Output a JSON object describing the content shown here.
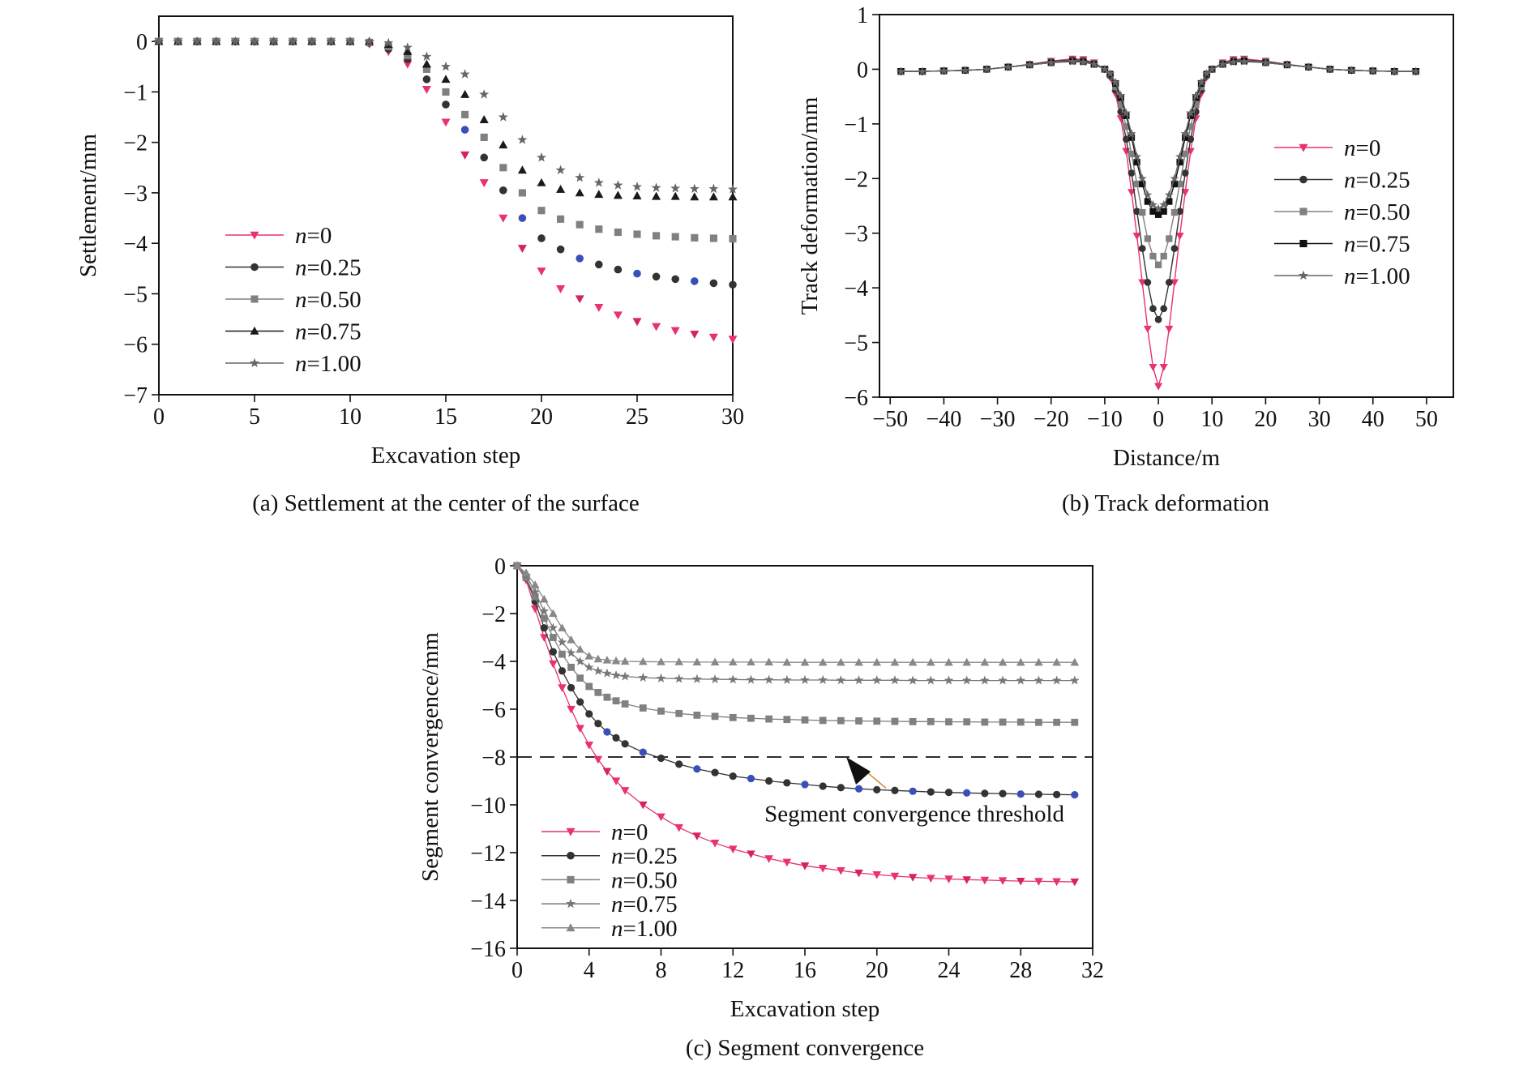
{
  "figure": {
    "captions": {
      "a": "(a) Settlement at the center of the surface",
      "b": "(b) Track deformation",
      "c": "(c) Segment convergence"
    }
  },
  "chart_data": [
    {
      "id": "a",
      "type": "scatter",
      "xlabel": "Excavation step",
      "ylabel": "Settlement/mm",
      "xlim": [
        0,
        30
      ],
      "ylim": [
        -7,
        0.5
      ],
      "xticks": [
        0,
        5,
        10,
        15,
        20,
        25,
        30
      ],
      "yticks": [
        0,
        -1,
        -2,
        -3,
        -4,
        -5,
        -6,
        -7
      ],
      "legend_position": "left-lower",
      "x": [
        0,
        1,
        2,
        3,
        4,
        5,
        6,
        7,
        8,
        9,
        10,
        11,
        12,
        13,
        14,
        15,
        16,
        17,
        18,
        19,
        20,
        21,
        22,
        23,
        24,
        25,
        26,
        27,
        28,
        29,
        30
      ],
      "series": [
        {
          "name": "n=0",
          "marker": "triangle-down",
          "color": "#e8336b",
          "values": [
            0,
            0,
            0,
            0,
            0,
            0,
            0,
            0,
            0,
            0,
            0,
            -0.05,
            -0.2,
            -0.45,
            -0.95,
            -1.6,
            -2.25,
            -2.8,
            -3.5,
            -4.1,
            -4.55,
            -4.9,
            -5.1,
            -5.27,
            -5.42,
            -5.55,
            -5.65,
            -5.73,
            -5.8,
            -5.86,
            -5.9
          ]
        },
        {
          "name": "n=0.25",
          "marker": "circle",
          "color": "#333333",
          "values": [
            0,
            0,
            0,
            0,
            0,
            0,
            0,
            0,
            0,
            0,
            0,
            -0.03,
            -0.15,
            -0.35,
            -0.75,
            -1.25,
            -1.75,
            -2.3,
            -2.95,
            -3.5,
            -3.9,
            -4.12,
            -4.3,
            -4.42,
            -4.52,
            -4.6,
            -4.66,
            -4.71,
            -4.75,
            -4.79,
            -4.82
          ]
        },
        {
          "name": "n=0.50",
          "marker": "square",
          "color": "#808080",
          "values": [
            0,
            0,
            0,
            0,
            0,
            0,
            0,
            0,
            0,
            0,
            0,
            -0.02,
            -0.1,
            -0.28,
            -0.55,
            -1.0,
            -1.45,
            -1.9,
            -2.5,
            -3.0,
            -3.35,
            -3.52,
            -3.63,
            -3.72,
            -3.78,
            -3.82,
            -3.85,
            -3.87,
            -3.89,
            -3.9,
            -3.91
          ]
        },
        {
          "name": "n=0.75",
          "marker": "triangle-up",
          "color": "#1a1a1a",
          "values": [
            0,
            0,
            0,
            0,
            0,
            0,
            0,
            0,
            0,
            0,
            0,
            0,
            -0.06,
            -0.2,
            -0.45,
            -0.75,
            -1.05,
            -1.55,
            -2.05,
            -2.55,
            -2.8,
            -2.93,
            -3.0,
            -3.03,
            -3.05,
            -3.06,
            -3.07,
            -3.07,
            -3.08,
            -3.08,
            -3.08
          ]
        },
        {
          "name": "n=1.00",
          "marker": "star",
          "color": "#666666",
          "values": [
            0,
            0,
            0,
            0,
            0,
            0,
            0,
            0,
            0,
            0,
            0,
            0,
            -0.03,
            -0.12,
            -0.3,
            -0.5,
            -0.65,
            -1.05,
            -1.5,
            -1.95,
            -2.3,
            -2.55,
            -2.7,
            -2.8,
            -2.85,
            -2.88,
            -2.9,
            -2.91,
            -2.92,
            -2.92,
            -2.93
          ]
        }
      ]
    },
    {
      "id": "b",
      "type": "line",
      "xlabel": "Distance/m",
      "ylabel": "Track deformation/mm",
      "xlim": [
        -52,
        55
      ],
      "ylim": [
        -6,
        1
      ],
      "xticks": [
        -50,
        -40,
        -30,
        -20,
        -10,
        0,
        10,
        20,
        30,
        40,
        50
      ],
      "yticks": [
        1,
        0,
        -1,
        -2,
        -3,
        -4,
        -5,
        -6
      ],
      "legend_position": "right-middle",
      "x": [
        -48,
        -44,
        -40,
        -36,
        -32,
        -28,
        -24,
        -20,
        -16,
        -14,
        -12,
        -10,
        -9,
        -8,
        -7,
        -6,
        -5,
        -4,
        -3,
        -2,
        -1,
        0,
        1,
        2,
        3,
        4,
        5,
        6,
        7,
        8,
        9,
        10,
        12,
        14,
        16,
        20,
        24,
        28,
        32,
        36,
        40,
        44,
        48
      ],
      "series": [
        {
          "name": "n=0",
          "marker": "triangle-down",
          "color": "#e8336b",
          "values": [
            -0.04,
            -0.04,
            -0.03,
            -0.02,
            0,
            0.04,
            0.09,
            0.15,
            0.19,
            0.18,
            0.12,
            0,
            -0.15,
            -0.45,
            -0.9,
            -1.5,
            -2.25,
            -3.05,
            -3.9,
            -4.75,
            -5.45,
            -5.8,
            -5.45,
            -4.75,
            -3.9,
            -3.05,
            -2.25,
            -1.5,
            -0.9,
            -0.45,
            -0.15,
            0,
            0.12,
            0.18,
            0.19,
            0.15,
            0.09,
            0.04,
            0,
            -0.02,
            -0.03,
            -0.04,
            -0.04
          ]
        },
        {
          "name": "n=0.25",
          "marker": "circle",
          "color": "#333333",
          "values": [
            -0.04,
            -0.04,
            -0.03,
            -0.02,
            0,
            0.04,
            0.09,
            0.14,
            0.17,
            0.16,
            0.11,
            0,
            -0.12,
            -0.38,
            -0.78,
            -1.28,
            -1.9,
            -2.6,
            -3.28,
            -3.9,
            -4.38,
            -4.58,
            -4.38,
            -3.9,
            -3.28,
            -2.6,
            -1.9,
            -1.28,
            -0.78,
            -0.38,
            -0.12,
            0,
            0.11,
            0.16,
            0.17,
            0.14,
            0.09,
            0.04,
            0,
            -0.02,
            -0.03,
            -0.04,
            -0.04
          ]
        },
        {
          "name": "n=0.50",
          "marker": "square",
          "color": "#808080",
          "values": [
            -0.04,
            -0.04,
            -0.03,
            -0.02,
            0,
            0.04,
            0.08,
            0.13,
            0.16,
            0.15,
            0.1,
            0,
            -0.1,
            -0.32,
            -0.65,
            -1.05,
            -1.55,
            -2.1,
            -2.62,
            -3.1,
            -3.42,
            -3.58,
            -3.42,
            -3.1,
            -2.62,
            -2.1,
            -1.55,
            -1.05,
            -0.65,
            -0.32,
            -0.1,
            0,
            0.1,
            0.15,
            0.16,
            0.13,
            0.08,
            0.04,
            0,
            -0.02,
            -0.03,
            -0.04,
            -0.04
          ]
        },
        {
          "name": "n=0.75",
          "marker": "square-filled",
          "color": "#111111",
          "values": [
            -0.04,
            -0.04,
            -0.03,
            -0.02,
            0,
            0.04,
            0.08,
            0.12,
            0.15,
            0.14,
            0.09,
            0,
            -0.09,
            -0.26,
            -0.52,
            -0.85,
            -1.25,
            -1.7,
            -2.1,
            -2.42,
            -2.6,
            -2.66,
            -2.6,
            -2.42,
            -2.1,
            -1.7,
            -1.25,
            -0.85,
            -0.52,
            -0.26,
            -0.09,
            0,
            0.09,
            0.14,
            0.15,
            0.12,
            0.08,
            0.04,
            0,
            -0.02,
            -0.03,
            -0.04,
            -0.04
          ]
        },
        {
          "name": "n=1.00",
          "marker": "star",
          "color": "#666666",
          "values": [
            -0.04,
            -0.04,
            -0.03,
            -0.02,
            0,
            0.04,
            0.08,
            0.12,
            0.14,
            0.13,
            0.09,
            0,
            -0.08,
            -0.24,
            -0.48,
            -0.8,
            -1.18,
            -1.6,
            -2.0,
            -2.3,
            -2.48,
            -2.55,
            -2.48,
            -2.3,
            -2.0,
            -1.6,
            -1.18,
            -0.8,
            -0.48,
            -0.24,
            -0.08,
            0,
            0.09,
            0.13,
            0.14,
            0.12,
            0.08,
            0.04,
            0,
            -0.02,
            -0.03,
            -0.04,
            -0.04
          ]
        }
      ]
    },
    {
      "id": "c",
      "type": "line",
      "xlabel": "Excavation step",
      "ylabel": "Segment convergence/mm",
      "xlim": [
        0,
        32
      ],
      "ylim": [
        -16,
        0
      ],
      "xticks": [
        0,
        4,
        8,
        12,
        16,
        20,
        24,
        28,
        32
      ],
      "yticks": [
        0,
        -2,
        -4,
        -6,
        -8,
        -10,
        -12,
        -14,
        -16
      ],
      "legend_position": "bottom-left",
      "threshold": {
        "value": -8,
        "label": "Segment convergence threshold"
      },
      "x": [
        0,
        0.5,
        1,
        1.5,
        2,
        2.5,
        3,
        3.5,
        4,
        4.5,
        5,
        5.5,
        6,
        7,
        8,
        9,
        10,
        11,
        12,
        13,
        14,
        15,
        16,
        17,
        18,
        19,
        20,
        21,
        22,
        23,
        24,
        25,
        26,
        27,
        28,
        29,
        30,
        31
      ],
      "series": [
        {
          "name": "n=0",
          "marker": "triangle-down",
          "color": "#e8336b",
          "values": [
            0,
            -0.6,
            -1.8,
            -3.0,
            -4.1,
            -5.1,
            -6.0,
            -6.8,
            -7.5,
            -8.1,
            -8.6,
            -9.0,
            -9.4,
            -10.0,
            -10.5,
            -10.95,
            -11.3,
            -11.6,
            -11.85,
            -12.05,
            -12.25,
            -12.4,
            -12.55,
            -12.65,
            -12.75,
            -12.85,
            -12.92,
            -12.98,
            -13.03,
            -13.07,
            -13.1,
            -13.13,
            -13.15,
            -13.17,
            -13.19,
            -13.2,
            -13.21,
            -13.22
          ]
        },
        {
          "name": "n=0.25",
          "marker": "circle",
          "color": "#333333",
          "values": [
            0,
            -0.5,
            -1.5,
            -2.6,
            -3.6,
            -4.4,
            -5.1,
            -5.7,
            -6.2,
            -6.6,
            -6.95,
            -7.2,
            -7.45,
            -7.8,
            -8.05,
            -8.3,
            -8.5,
            -8.65,
            -8.8,
            -8.9,
            -9.0,
            -9.08,
            -9.15,
            -9.22,
            -9.28,
            -9.33,
            -9.37,
            -9.4,
            -9.43,
            -9.46,
            -9.48,
            -9.5,
            -9.52,
            -9.53,
            -9.55,
            -9.56,
            -9.57,
            -9.58
          ]
        },
        {
          "name": "n=0.50",
          "marker": "square",
          "color": "#808080",
          "values": [
            0,
            -0.5,
            -1.3,
            -2.2,
            -3.0,
            -3.7,
            -4.25,
            -4.7,
            -5.05,
            -5.3,
            -5.5,
            -5.65,
            -5.78,
            -5.95,
            -6.08,
            -6.18,
            -6.25,
            -6.3,
            -6.35,
            -6.38,
            -6.41,
            -6.43,
            -6.45,
            -6.47,
            -6.48,
            -6.49,
            -6.5,
            -6.51,
            -6.52,
            -6.52,
            -6.53,
            -6.53,
            -6.54,
            -6.54,
            -6.54,
            -6.55,
            -6.55,
            -6.55
          ]
        },
        {
          "name": "n=0.75",
          "marker": "star",
          "color": "#777777",
          "values": [
            0,
            -0.4,
            -1.1,
            -1.9,
            -2.6,
            -3.2,
            -3.65,
            -4.0,
            -4.25,
            -4.4,
            -4.5,
            -4.58,
            -4.63,
            -4.68,
            -4.71,
            -4.73,
            -4.74,
            -4.75,
            -4.76,
            -4.77,
            -4.77,
            -4.78,
            -4.78,
            -4.78,
            -4.79,
            -4.79,
            -4.79,
            -4.79,
            -4.8,
            -4.8,
            -4.8,
            -4.8,
            -4.8,
            -4.8,
            -4.8,
            -4.8,
            -4.8,
            -4.8
          ]
        },
        {
          "name": "n=1.00",
          "marker": "triangle-up",
          "color": "#888888",
          "values": [
            0,
            -0.3,
            -0.8,
            -1.4,
            -2.0,
            -2.6,
            -3.1,
            -3.5,
            -3.78,
            -3.9,
            -3.95,
            -3.98,
            -4.0,
            -4.01,
            -4.02,
            -4.02,
            -4.03,
            -4.03,
            -4.03,
            -4.03,
            -4.03,
            -4.04,
            -4.04,
            -4.04,
            -4.04,
            -4.04,
            -4.04,
            -4.04,
            -4.04,
            -4.04,
            -4.04,
            -4.04,
            -4.04,
            -4.04,
            -4.04,
            -4.04,
            -4.04,
            -4.04
          ]
        }
      ]
    }
  ]
}
